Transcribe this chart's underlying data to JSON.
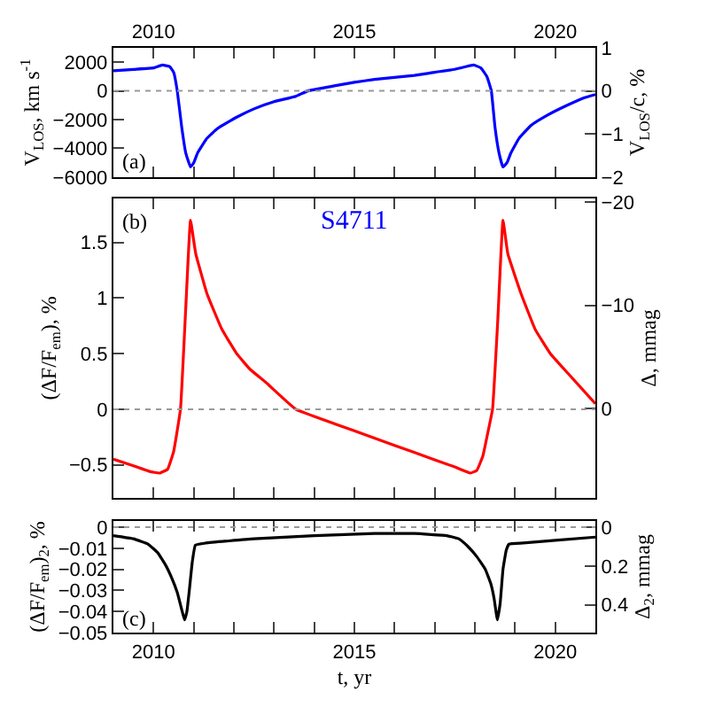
{
  "chart_data": [
    {
      "type": "line",
      "xlim": [
        2009,
        2021
      ],
      "xticks": [
        2010,
        2015,
        2020
      ],
      "ylim": [
        -6000,
        3000
      ],
      "yticks": [
        -6000,
        -4000,
        -2000,
        0,
        2000
      ],
      "y2lim": [
        -2,
        1
      ],
      "y2ticks": [
        -2,
        -1,
        0,
        1
      ],
      "ylabel": "V$_{LOS}$, km s$^{-1}$",
      "y2label": "V$_{LOS}$/c, %",
      "series": [
        {
          "color": "#0000ff",
          "x": [
            2009.0,
            2009.5,
            2010.0,
            2010.22,
            2010.4,
            2010.5,
            2010.59,
            2010.7,
            2010.8,
            2010.92,
            2011.0,
            2011.1,
            2011.33,
            2011.6,
            2012.07,
            2012.5,
            2013.0,
            2013.54,
            2013.84,
            2014.5,
            2015.0,
            2015.5,
            2016.49,
            2017.0,
            2017.5,
            2017.97,
            2018.15,
            2018.3,
            2018.41,
            2018.5,
            2018.6,
            2018.7,
            2018.8,
            2018.9,
            2019.1,
            2019.4,
            2019.8,
            2020.3,
            2020.7,
            2021.0
          ],
          "values": [
            1400,
            1500,
            1600,
            1800,
            1700,
            1300,
            0,
            -2500,
            -4300,
            -5300,
            -5000,
            -4300,
            -3300,
            -2600,
            -1830,
            -1250,
            -750,
            -375,
            0,
            350,
            600,
            800,
            1080,
            1300,
            1500,
            1800,
            1600,
            1000,
            0,
            -2500,
            -4300,
            -5300,
            -5000,
            -4300,
            -3300,
            -2400,
            -1700,
            -1000,
            -500,
            -250
          ]
        }
      ],
      "ref_lines": [
        {
          "axis": "y",
          "value": 0,
          "color": "#999999",
          "line_style": "dotted"
        }
      ],
      "annotations": [
        "(a)"
      ]
    },
    {
      "type": "line",
      "xlim": [
        2009,
        2021
      ],
      "xticks": [
        2010,
        2015,
        2020
      ],
      "ylim": [
        -0.8,
        1.9
      ],
      "yticks": [
        -0.5,
        0,
        0.5,
        1,
        1.5
      ],
      "y2lim": [
        8.7,
        -20.4
      ],
      "y2ticks": [
        0,
        -10,
        -20
      ],
      "ylabel": "(ΔF/F$_{em}$), %",
      "y2label": "Δ, mmag",
      "tick_labels": "y",
      "series": [
        {
          "color": "#ff0000",
          "x": [
            2009.0,
            2009.5,
            2009.9,
            2010.15,
            2010.35,
            2010.5,
            2010.67,
            2010.8,
            2010.92,
            2011.05,
            2011.33,
            2011.7,
            2012.07,
            2012.4,
            2012.8,
            2013.54,
            2014.5,
            2015.5,
            2016.5,
            2017.5,
            2017.89,
            2018.05,
            2018.2,
            2018.3,
            2018.44,
            2018.57,
            2018.7,
            2018.82,
            2019.15,
            2019.5,
            2019.88,
            2020.3,
            2021.0
          ],
          "values": [
            -0.45,
            -0.51,
            -0.56,
            -0.575,
            -0.54,
            -0.38,
            0,
            0.9,
            1.7,
            1.4,
            1.04,
            0.72,
            0.5,
            0.36,
            0.24,
            0,
            -0.13,
            -0.26,
            -0.39,
            -0.52,
            -0.575,
            -0.55,
            -0.42,
            -0.25,
            0,
            0.8,
            1.7,
            1.4,
            1.04,
            0.72,
            0.5,
            0.33,
            0.05
          ]
        }
      ],
      "ref_lines": [
        {
          "axis": "y",
          "value": 0,
          "color": "#999999",
          "line_style": "dotted"
        }
      ],
      "annotations": [
        "(b)",
        "S4711"
      ]
    },
    {
      "type": "line",
      "xlim": [
        2009,
        2021
      ],
      "xticks": [
        2010,
        2015,
        2020
      ],
      "ylim": [
        -0.05,
        0.003
      ],
      "yticks": [
        -0.05,
        -0.04,
        -0.03,
        -0.02,
        -0.01,
        0
      ],
      "y2lim": [
        0.543,
        -0.033
      ],
      "y2ticks": [
        0,
        0.2,
        0.4
      ],
      "xlabel": "t, yr",
      "ylabel": "(ΔF/F$_{em}$)$_{2}$, %",
      "y2label": "Δ$_{2}$, mmag",
      "series": [
        {
          "color": "#000000",
          "x": [
            2009.0,
            2009.5,
            2009.86,
            2010.1,
            2010.3,
            2010.45,
            2010.59,
            2010.7,
            2010.77,
            2010.83,
            2010.89,
            2010.96,
            2011.04,
            2011.3,
            2012.5,
            2014.0,
            2015.5,
            2016.5,
            2017.3,
            2017.6,
            2017.82,
            2018.05,
            2018.26,
            2018.4,
            2018.48,
            2018.56,
            2018.63,
            2018.7,
            2018.78,
            2018.85,
            2019.2,
            2020.0,
            2021.0
          ],
          "values": [
            -0.004,
            -0.0055,
            -0.008,
            -0.012,
            -0.018,
            -0.024,
            -0.031,
            -0.039,
            -0.044,
            -0.04,
            -0.03,
            -0.017,
            -0.0085,
            -0.0075,
            -0.0055,
            -0.004,
            -0.003,
            -0.003,
            -0.004,
            -0.0055,
            -0.009,
            -0.014,
            -0.02,
            -0.027,
            -0.034,
            -0.044,
            -0.036,
            -0.02,
            -0.011,
            -0.008,
            -0.0075,
            -0.0062,
            -0.0047
          ]
        }
      ],
      "ref_lines": [
        {
          "axis": "y",
          "value": 0,
          "color": "#999999",
          "line_style": "dotted"
        }
      ],
      "annotations": [
        "(c)"
      ]
    }
  ]
}
